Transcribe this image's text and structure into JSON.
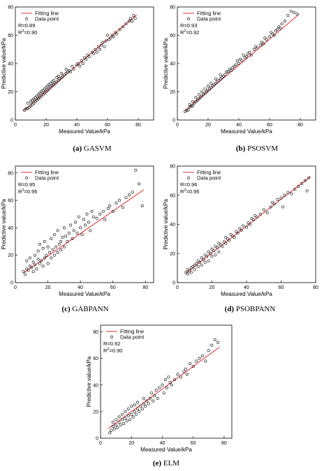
{
  "colors": {
    "fit_line": "#e03030",
    "points": "#000000",
    "axes": "#000000"
  },
  "chart_data": [
    {
      "type": "scatter",
      "caption_letter": "(a)",
      "caption_name": "GASVM",
      "xlabel": "Measured Value/kPa",
      "ylabel": "Predictive value/kPa",
      "xlim": [
        0,
        90
      ],
      "ylim": [
        0,
        80
      ],
      "xticks": [
        0,
        20,
        40,
        60,
        80
      ],
      "yticks": [
        0,
        20,
        40,
        60,
        80
      ],
      "stats": {
        "r": "R=0.89",
        "r2_base": "R",
        "r2_sup": "2",
        "r2_val": "=0.90"
      },
      "legend": {
        "line": "Fitting line",
        "points": "Data point"
      },
      "fit": {
        "slope": 0.92,
        "intercept": 1.8,
        "x_range": [
          5,
          79
        ]
      },
      "points": {
        "x": [
          6,
          7,
          8,
          8,
          9,
          10,
          10,
          11,
          11,
          12,
          12,
          13,
          13,
          14,
          14,
          15,
          15,
          16,
          16,
          17,
          17,
          18,
          18,
          19,
          19,
          20,
          20,
          21,
          21,
          22,
          22,
          23,
          23,
          24,
          24,
          25,
          25,
          26,
          27,
          27,
          28,
          28,
          29,
          30,
          30,
          31,
          32,
          33,
          33,
          34,
          35,
          36,
          37,
          38,
          40,
          41,
          42,
          43,
          44,
          45,
          46,
          47,
          48,
          50,
          51,
          52,
          53,
          54,
          55,
          56,
          57,
          58,
          59,
          60,
          61,
          62,
          63,
          64,
          65,
          66,
          68,
          70,
          72,
          74,
          75,
          76,
          77,
          78
        ],
        "y": [
          7,
          8,
          8,
          12,
          9,
          10,
          13,
          11,
          14,
          12,
          15,
          13,
          16,
          14,
          17,
          15,
          18,
          16,
          19,
          17,
          20,
          18,
          21,
          19,
          22,
          20,
          23,
          21,
          24,
          22,
          25,
          23,
          26,
          24,
          27,
          25,
          28,
          26,
          27,
          30,
          28,
          31,
          29,
          30,
          33,
          31,
          32,
          33,
          36,
          34,
          35,
          34,
          38,
          36,
          39,
          40,
          38,
          42,
          40,
          44,
          43,
          46,
          45,
          48,
          47,
          50,
          48,
          52,
          50,
          53,
          55,
          52,
          56,
          60,
          57,
          58,
          60,
          59,
          62,
          61,
          64,
          66,
          68,
          70,
          72,
          70,
          74,
          72
        ]
      }
    },
    {
      "type": "scatter",
      "caption_letter": "(b)",
      "caption_name": "PSOSVM",
      "xlabel": "Measured Value/kPa",
      "ylabel": "Predictive value/kPa",
      "xlim": [
        0,
        90
      ],
      "ylim": [
        0,
        80
      ],
      "xticks": [
        0,
        20,
        40,
        60,
        80
      ],
      "yticks": [
        0,
        20,
        40,
        60,
        80
      ],
      "stats": {
        "r": "R=0.93",
        "r2_base": "R",
        "r2_sup": "2",
        "r2_val": "=0.92"
      },
      "legend": {
        "line": "Fitting line",
        "points": "Data point"
      },
      "fit": {
        "slope": 0.92,
        "intercept": 2.0,
        "x_range": [
          5,
          79
        ]
      },
      "points": {
        "x": [
          5,
          6,
          7,
          8,
          8,
          9,
          10,
          10,
          11,
          12,
          12,
          13,
          14,
          14,
          15,
          16,
          16,
          17,
          18,
          18,
          19,
          20,
          20,
          21,
          22,
          22,
          23,
          24,
          25,
          25,
          26,
          27,
          28,
          28,
          29,
          30,
          31,
          32,
          33,
          34,
          35,
          36,
          37,
          38,
          39,
          40,
          41,
          42,
          43,
          44,
          45,
          46,
          47,
          48,
          50,
          51,
          52,
          54,
          55,
          56,
          57,
          58,
          60,
          61,
          62,
          63,
          64,
          65,
          66,
          67,
          68,
          70,
          72,
          74,
          76,
          78
        ],
        "y": [
          6,
          7,
          7,
          9,
          11,
          10,
          10,
          13,
          12,
          13,
          16,
          14,
          15,
          18,
          16,
          17,
          20,
          18,
          19,
          22,
          20,
          21,
          24,
          22,
          23,
          26,
          24,
          25,
          26,
          29,
          27,
          28,
          29,
          32,
          30,
          31,
          32,
          34,
          34,
          36,
          35,
          37,
          38,
          39,
          42,
          40,
          43,
          42,
          46,
          44,
          45,
          47,
          48,
          46,
          50,
          52,
          51,
          53,
          55,
          54,
          58,
          57,
          59,
          62,
          61,
          60,
          63,
          64,
          66,
          65,
          68,
          70,
          74,
          77,
          76,
          75
        ]
      }
    },
    {
      "type": "scatter",
      "caption_letter": "(c)",
      "caption_name": "GABPANN",
      "xlabel": "Measured Value/kPa",
      "ylabel": "Predictive value/kPa",
      "xlim": [
        0,
        85
      ],
      "ylim": [
        0,
        85
      ],
      "xticks": [
        0,
        20,
        40,
        60,
        80
      ],
      "yticks": [
        0,
        20,
        40,
        60,
        80
      ],
      "stats": {
        "r": "R=0.95",
        "r2_base": "R",
        "r2_sup": "2",
        "r2_val": "=0.95"
      },
      "legend": {
        "line": "Fitting line",
        "points": "Data point"
      },
      "fit": {
        "slope": 0.82,
        "intercept": 3.0,
        "x_range": [
          5,
          79
        ]
      },
      "points": {
        "x": [
          5,
          6,
          7,
          7,
          8,
          9,
          9,
          10,
          11,
          11,
          12,
          12,
          13,
          14,
          14,
          15,
          15,
          16,
          17,
          17,
          18,
          18,
          19,
          20,
          20,
          21,
          22,
          22,
          23,
          24,
          24,
          25,
          26,
          26,
          27,
          28,
          28,
          29,
          30,
          30,
          31,
          32,
          33,
          34,
          35,
          36,
          37,
          38,
          39,
          40,
          41,
          42,
          43,
          44,
          45,
          46,
          47,
          48,
          50,
          52,
          54,
          55,
          57,
          58,
          60,
          62,
          64,
          66,
          68,
          70,
          72,
          74,
          76,
          78
        ],
        "y": [
          8,
          6,
          10,
          16,
          9,
          12,
          18,
          11,
          8,
          15,
          13,
          20,
          10,
          17,
          23,
          14,
          28,
          16,
          12,
          25,
          18,
          30,
          20,
          14,
          26,
          22,
          18,
          32,
          24,
          20,
          35,
          26,
          22,
          38,
          28,
          24,
          30,
          33,
          26,
          40,
          34,
          30,
          36,
          42,
          32,
          38,
          44,
          36,
          48,
          40,
          35,
          46,
          42,
          50,
          44,
          38,
          52,
          48,
          47,
          50,
          52,
          46,
          54,
          56,
          52,
          58,
          60,
          55,
          62,
          64,
          66,
          82,
          72,
          56
        ]
      }
    },
    {
      "type": "scatter",
      "caption_letter": "(d)",
      "caption_name": "PSOBPANN",
      "xlabel": "Measured Value/kPa",
      "ylabel": "Predictive value/kPa",
      "xlim": [
        0,
        80
      ],
      "ylim": [
        0,
        80
      ],
      "xticks": [
        0,
        20,
        40,
        60,
        80
      ],
      "yticks": [
        0,
        20,
        40,
        60,
        80
      ],
      "stats": {
        "r": "R=0.96",
        "r2_base": "R",
        "r2_sup": "2",
        "r2_val": "=0.95"
      },
      "legend": {
        "line": "Fitting line",
        "points": "Data point"
      },
      "fit": {
        "slope": 0.92,
        "intercept": 2.0,
        "x_range": [
          5,
          77
        ]
      },
      "points": {
        "x": [
          5,
          6,
          6,
          7,
          8,
          8,
          9,
          10,
          10,
          11,
          12,
          12,
          13,
          14,
          14,
          15,
          16,
          16,
          17,
          18,
          18,
          19,
          20,
          20,
          21,
          22,
          22,
          23,
          24,
          24,
          25,
          26,
          27,
          28,
          28,
          29,
          30,
          31,
          32,
          33,
          34,
          35,
          36,
          37,
          38,
          40,
          41,
          42,
          43,
          44,
          45,
          46,
          48,
          50,
          52,
          54,
          55,
          56,
          58,
          60,
          61,
          62,
          64,
          66,
          68,
          70,
          72,
          74,
          75,
          76
        ],
        "y": [
          7,
          6,
          9,
          8,
          10,
          7,
          11,
          12,
          9,
          13,
          11,
          15,
          14,
          12,
          17,
          16,
          14,
          19,
          18,
          15,
          21,
          20,
          18,
          23,
          22,
          19,
          25,
          24,
          21,
          27,
          26,
          25,
          28,
          27,
          31,
          30,
          29,
          33,
          32,
          31,
          35,
          34,
          37,
          36,
          39,
          38,
          41,
          40,
          44,
          43,
          46,
          45,
          47,
          50,
          48,
          52,
          55,
          54,
          57,
          58,
          52,
          60,
          62,
          61,
          64,
          66,
          68,
          70,
          63,
          72
        ]
      }
    },
    {
      "type": "scatter",
      "caption_letter": "(e)",
      "caption_name": "ELM",
      "xlabel": "Measured Value/kPa",
      "ylabel": "Predictive value/kPa",
      "xlim": [
        0,
        85
      ],
      "ylim": [
        0,
        85
      ],
      "xticks": [
        0,
        20,
        40,
        60,
        80
      ],
      "yticks": [
        0,
        20,
        40,
        60,
        80
      ],
      "stats": {
        "r": "R=0.92",
        "r2_base": "R",
        "r2_sup": "2",
        "r2_val": "=0.90"
      },
      "legend": {
        "line": "Fitting line",
        "points": "Data point"
      },
      "fit": {
        "slope": 0.85,
        "intercept": 3.0,
        "x_range": [
          5,
          77
        ]
      },
      "points": {
        "x": [
          6,
          7,
          8,
          8,
          9,
          10,
          10,
          11,
          12,
          12,
          13,
          14,
          14,
          15,
          16,
          16,
          17,
          18,
          18,
          19,
          20,
          20,
          21,
          22,
          22,
          23,
          24,
          24,
          25,
          26,
          27,
          28,
          28,
          29,
          30,
          31,
          32,
          33,
          34,
          35,
          36,
          37,
          38,
          40,
          41,
          42,
          43,
          44,
          45,
          46,
          48,
          50,
          52,
          54,
          55,
          56,
          58,
          60,
          62,
          64,
          66,
          68,
          70,
          72,
          74,
          76
        ],
        "y": [
          4,
          6,
          9,
          12,
          7,
          10,
          14,
          8,
          12,
          16,
          10,
          14,
          18,
          11,
          15,
          20,
          13,
          17,
          22,
          14,
          18,
          24,
          16,
          20,
          25,
          18,
          22,
          27,
          20,
          24,
          22,
          26,
          30,
          24,
          28,
          26,
          30,
          34,
          28,
          32,
          36,
          30,
          38,
          40,
          34,
          44,
          38,
          46,
          42,
          40,
          44,
          48,
          46,
          50,
          52,
          48,
          56,
          54,
          58,
          60,
          62,
          58,
          66,
          70,
          74,
          72
        ]
      }
    }
  ]
}
